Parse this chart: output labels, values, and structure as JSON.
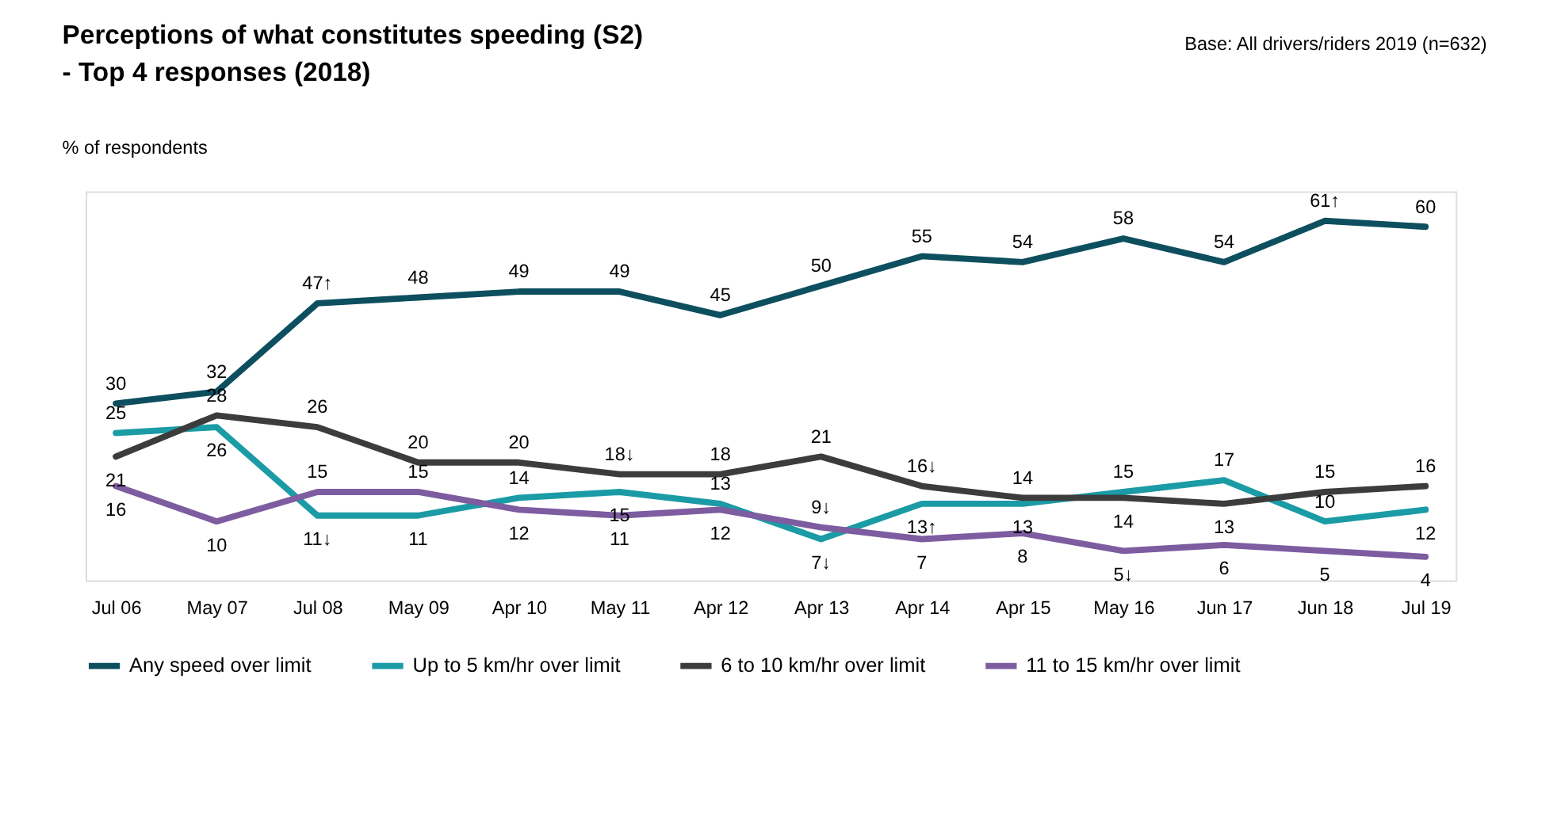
{
  "chart_data": {
    "type": "line",
    "title": "Perceptions of what constitutes speeding (S2)\n- Top 4 responses (2018)",
    "ylabel": "% of respondents",
    "annotations": [
      "Base: All drivers/riders 2019 (n=632)"
    ],
    "categories": [
      "Jul 06",
      "May 07",
      "Jul 08",
      "May 09",
      "Apr 10",
      "May 11",
      "Apr 12",
      "Apr 13",
      "Apr 14",
      "Apr 15",
      "May 16",
      "Jun 17",
      "Jun 18",
      "Jul 19"
    ],
    "ylim": [
      0,
      66
    ],
    "tick_labels": "x",
    "grid": false,
    "legend": "bottom",
    "marker": "none",
    "line_style": "solid",
    "series": [
      {
        "name": "Any speed over limit",
        "color": "#0d4f5f",
        "values": [
          30,
          32,
          47,
          48,
          49,
          49,
          45,
          50,
          55,
          54,
          58,
          54,
          61,
          60
        ],
        "value_labels": [
          "30",
          "32",
          "47↑",
          "48",
          "49",
          "49",
          "45",
          "50",
          "55",
          "54",
          "58",
          "54",
          "61↑",
          "60"
        ]
      },
      {
        "name": "Up to 5 km/hr over limit",
        "color": "#1a9ba5",
        "values": [
          25,
          26,
          11,
          11,
          14,
          15,
          13,
          7,
          13,
          13,
          15,
          17,
          10,
          12
        ],
        "value_labels": [
          "25",
          "26",
          "11↓",
          "11",
          "14",
          "15",
          "13",
          "7↓",
          "13↑",
          "13",
          "15",
          "17",
          "10",
          "12"
        ]
      },
      {
        "name": "6 to 10 km/hr over limit",
        "color": "#3c3c3c",
        "values": [
          21,
          28,
          26,
          20,
          20,
          18,
          18,
          21,
          16,
          14,
          14,
          13,
          15,
          16
        ],
        "value_labels": [
          "21",
          "28",
          "26",
          "20",
          "20",
          "18↓",
          "18",
          "21",
          "16↓",
          "14",
          "14",
          "13",
          "15",
          "16"
        ]
      },
      {
        "name": "11 to 15 km/hr over limit",
        "color": "#7d5ca0",
        "values": [
          16,
          10,
          15,
          15,
          12,
          11,
          12,
          9,
          7,
          8,
          5,
          6,
          5,
          4
        ],
        "value_labels": [
          "16",
          "10",
          "15",
          "15",
          "12",
          "11",
          "12",
          "9↓",
          "7",
          "8",
          "5↓",
          "6",
          "5",
          "4"
        ]
      }
    ]
  }
}
